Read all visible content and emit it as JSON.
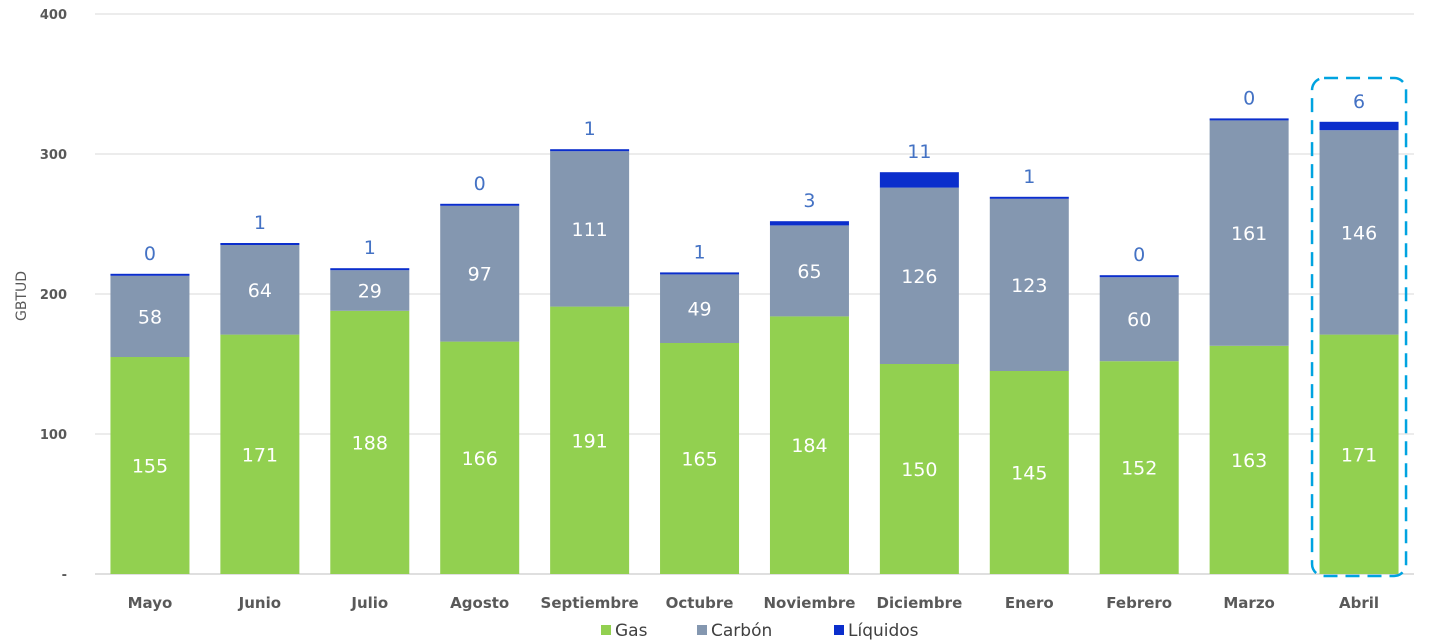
{
  "chart_data": {
    "type": "bar",
    "stacked": true,
    "ylabel": "GBTUD",
    "ylim": [
      0,
      400
    ],
    "yticks": [
      {
        "value": 0,
        "label": "-"
      },
      {
        "value": 100,
        "label": "100"
      },
      {
        "value": 200,
        "label": "200"
      },
      {
        "value": 300,
        "label": "300"
      },
      {
        "value": 400,
        "label": "400"
      }
    ],
    "grid": true,
    "legend_position": "bottom",
    "categories": [
      "Mayo",
      "Junio",
      "Julio",
      "Agosto",
      "Septiembre",
      "Octubre",
      "Noviembre",
      "Diciembre",
      "Enero",
      "Febrero",
      "Marzo",
      "Abril"
    ],
    "series": [
      {
        "name": "Gas",
        "color": "#92D050",
        "values": [
          155,
          171,
          188,
          166,
          191,
          165,
          184,
          150,
          145,
          152,
          163,
          171
        ]
      },
      {
        "name": "Carbón",
        "color": "#8497B0",
        "values": [
          58,
          64,
          29,
          97,
          111,
          49,
          65,
          126,
          123,
          60,
          161,
          146
        ]
      },
      {
        "name": "Líquidos",
        "color": "#0B2ECC",
        "values": [
          0,
          1,
          1,
          0,
          1,
          1,
          3,
          11,
          1,
          0,
          0,
          6
        ]
      }
    ],
    "highlight_category": "Abril",
    "highlight_color": "#00A3E0"
  }
}
